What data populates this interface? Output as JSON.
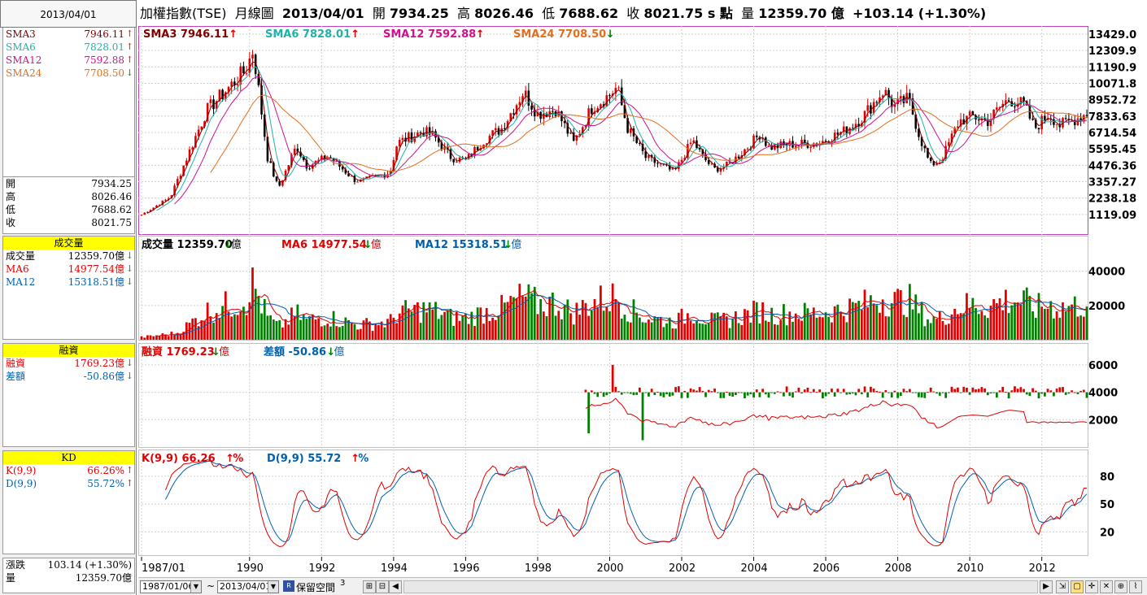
{
  "date": "2013/04/01",
  "header": {
    "title": "加權指數(TSE)",
    "chart_kind": "月線圖",
    "date": "2013/04/01",
    "open_label": "開",
    "open": "7934.25",
    "high_label": "高",
    "high": "8026.46",
    "low_label": "低",
    "low": "7688.62",
    "close_label": "收",
    "close": "8021.75 s 點",
    "vol_label": "量",
    "vol": "12359.70 億",
    "change": "+103.14 (+1.30%)"
  },
  "left": {
    "sma": [
      {
        "label": "SMA3",
        "value": "7946.11",
        "dir": "up",
        "color": "#800000"
      },
      {
        "label": "SMA6",
        "value": "7828.01",
        "dir": "up",
        "color": "#20b2aa"
      },
      {
        "label": "SMA12",
        "value": "7592.88",
        "dir": "up",
        "color": "#d01090"
      },
      {
        "label": "SMA24",
        "value": "7708.50",
        "dir": "down",
        "color": "#e07020"
      }
    ],
    "ohlc": [
      {
        "label": "開",
        "value": "7934.25"
      },
      {
        "label": "高",
        "value": "8026.46"
      },
      {
        "label": "低",
        "value": "7688.62"
      },
      {
        "label": "收",
        "value": "8021.75"
      }
    ],
    "volume_title": "成交量",
    "volume": [
      {
        "label": "成交量",
        "value": "12359.70億",
        "dir": "down",
        "color": "#000000"
      },
      {
        "label": "MA6",
        "value": "14977.54億",
        "dir": "down",
        "color": "#e00000"
      },
      {
        "label": "MA12",
        "value": "15318.51億",
        "dir": "down",
        "color": "#0060b0"
      }
    ],
    "margin_title": "融資",
    "margin": [
      {
        "label": "融資",
        "value": "1769.23億",
        "dir": "down",
        "color": "#e00000"
      },
      {
        "label": "差額",
        "value": "-50.86億",
        "dir": "down",
        "color": "#0060b0"
      }
    ],
    "kd_title": "KD",
    "kd": [
      {
        "label": "K(9,9)",
        "value": "66.26%",
        "dir": "up",
        "color": "#e00000"
      },
      {
        "label": "D(9,9)",
        "value": "55.72%",
        "dir": "up",
        "color": "#0060b0"
      }
    ],
    "change_label": "漲跌",
    "change_value": "103.14 (+1.30%)",
    "vol_label": "量",
    "vol_value": "12359.70億"
  },
  "price_panel": {
    "legend": [
      {
        "text": "SMA3 7946.11",
        "dir": "up",
        "color": "#800000"
      },
      {
        "text": "SMA6 7828.01",
        "dir": "up",
        "color": "#20b2aa"
      },
      {
        "text": "SMA12 7592.88",
        "dir": "up",
        "color": "#d01090"
      },
      {
        "text": "SMA24 7708.50",
        "dir": "down",
        "color": "#e07020"
      }
    ],
    "yticks": [
      "13429.0",
      "12309.9",
      "11190.9",
      "10071.8",
      "8952.72",
      "7833.63",
      "6714.54",
      "5595.45",
      "4476.36",
      "3357.27",
      "2238.18",
      "1119.09"
    ]
  },
  "volume_panel": {
    "legend": [
      {
        "text": "成交量 12359.70",
        "unit": "億",
        "dir": "down",
        "color": "#000000"
      },
      {
        "text": "MA6 14977.54",
        "unit": "億",
        "dir": "down",
        "color": "#e00000"
      },
      {
        "text": "MA12 15318.51",
        "unit": "億",
        "dir": "down",
        "color": "#0060b0"
      }
    ],
    "yticks": [
      "40000",
      "20000"
    ]
  },
  "margin_panel": {
    "legend": [
      {
        "text": "融資 1769.23",
        "unit": "億",
        "dir": "down",
        "color": "#e00000"
      },
      {
        "text": "差額 -50.86",
        "unit": "億",
        "dir": "down",
        "color": "#0060b0"
      }
    ],
    "yticks": [
      "6000",
      "4000",
      "2000"
    ]
  },
  "kd_panel": {
    "legend": [
      {
        "text": "K(9,9) 66.26",
        "unit": "%",
        "dir": "up",
        "color": "#e00000"
      },
      {
        "text": "D(9,9) 55.72",
        "unit": "%",
        "dir": "up",
        "color": "#0060b0"
      }
    ],
    "yticks": [
      "80",
      "50",
      "20"
    ]
  },
  "xaxis": [
    "1987/01",
    "1990",
    "1992",
    "1994",
    "1996",
    "1998",
    "2000",
    "2002",
    "2004",
    "2006",
    "2008",
    "2010",
    "2012"
  ],
  "bottom": {
    "from": "1987/01/06",
    "tilde": "~",
    "to": "2013/04/01",
    "reserve_label": "保留空間",
    "reserve_value": "3"
  },
  "colors": {
    "up": "#e00000",
    "down": "#008000",
    "frame": "#c040c0"
  },
  "chart_data": {
    "type": "line",
    "title": "加權指數(TSE) 月線圖",
    "series": [
      {
        "name": "SMA3",
        "x": [
          1987,
          1988,
          1989,
          1990,
          1991,
          1992,
          1993,
          1994,
          1995,
          1996,
          1997,
          1998,
          1999,
          2000,
          2001,
          2002,
          2003,
          2004,
          2005,
          2006,
          2007,
          2008,
          2009,
          2010,
          2011,
          2012,
          2013
        ],
        "values": [
          1200,
          3500,
          8500,
          11500,
          4500,
          4800,
          3900,
          6000,
          5500,
          5000,
          9000,
          7500,
          7500,
          9500,
          4500,
          5800,
          4800,
          6200,
          6000,
          6600,
          9000,
          5000,
          7000,
          8300,
          8800,
          7400,
          7946
        ]
      }
    ],
    "ylim": [
      0,
      13429
    ],
    "volume": {
      "values": [
        800,
        4500,
        15000,
        30000,
        12000,
        8000,
        6000,
        14000,
        12000,
        10000,
        35000,
        22000,
        20000,
        33000,
        14000,
        18000,
        16000,
        22000,
        18000,
        20000,
        30000,
        16000,
        30000,
        24000,
        26000,
        18000,
        12360
      ]
    },
    "kd": {
      "K_last": 66.26,
      "D_last": 55.72,
      "ylim": [
        0,
        100
      ]
    }
  }
}
